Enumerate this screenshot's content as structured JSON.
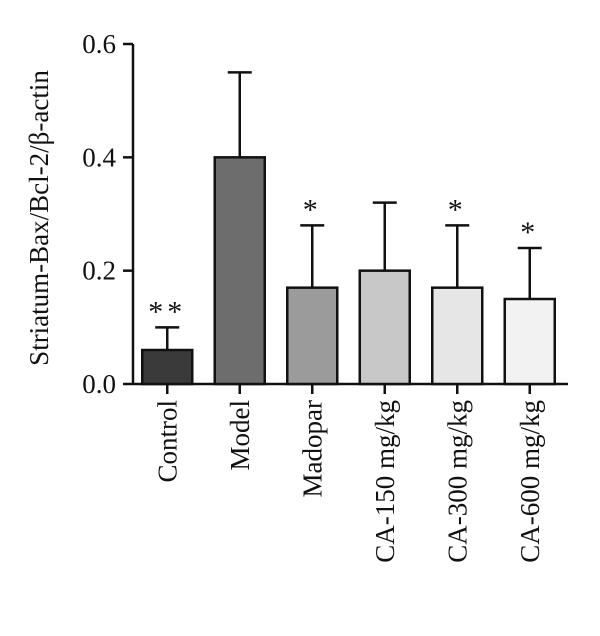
{
  "chart_data": {
    "type": "bar",
    "title": "",
    "xlabel": "",
    "ylabel": "Striatum-Bax/Bcl-2/β-actin",
    "ylim": [
      0,
      0.6
    ],
    "yticks": [
      "0.0",
      "0.2",
      "0.4",
      "0.6"
    ],
    "ytick_values": [
      0,
      0.2,
      0.4,
      0.6
    ],
    "categories": [
      "Control",
      "Model",
      "Madopar",
      "CA-150 mg/kg",
      "CA-300 mg/kg",
      "CA-600 mg/kg"
    ],
    "values": [
      0.06,
      0.4,
      0.17,
      0.2,
      0.17,
      0.15
    ],
    "error_upper": [
      0.04,
      0.15,
      0.11,
      0.12,
      0.11,
      0.09
    ],
    "significance": [
      "**",
      "",
      "*",
      "",
      "*",
      "*"
    ],
    "colors": [
      "#3a3a3a",
      "#6d6d6d",
      "#9b9b9b",
      "#c8c8c8",
      "#e6e6e6",
      "#f2f2f2"
    ],
    "grid": false
  }
}
